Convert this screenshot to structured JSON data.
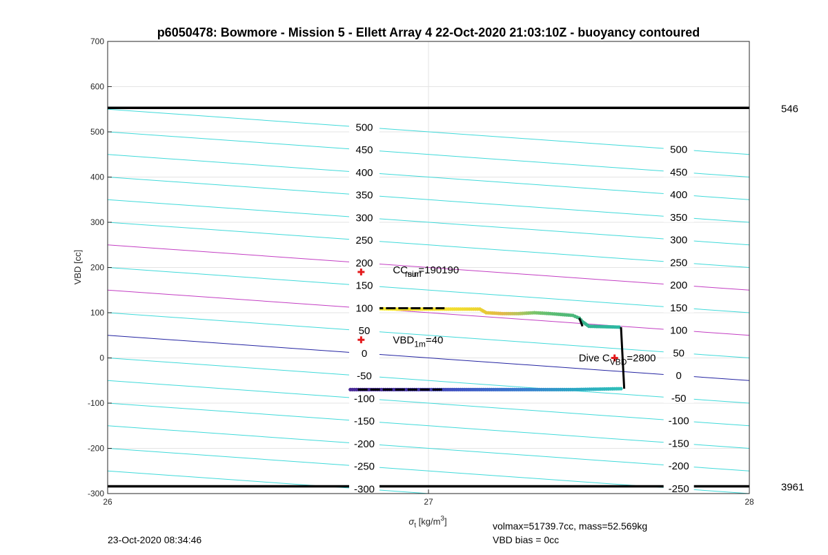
{
  "chart_data": {
    "type": "line",
    "title": "p6050478: Bowmore - Mission 5 - Ellett Array 4 22-Oct-2020 21:03:10Z - buoyancy contoured",
    "xlabel": "σ",
    "xlabel_sub": "t",
    "xlabel_unit": " [kg/m",
    "xlabel_unit_sup": "3",
    "xlabel_unit_end": "]",
    "ylabel": "VBD [cc]",
    "xlim": [
      26,
      28
    ],
    "ylim": [
      -300,
      700
    ],
    "xticks": [
      26,
      27,
      28
    ],
    "yticks": [
      -300,
      -200,
      -100,
      0,
      100,
      200,
      300,
      400,
      500,
      600,
      700
    ],
    "grid": true,
    "colors": {
      "contour": "#3dd9d9",
      "contour_highlight": "#c23bc2",
      "zero_contour": "#2020a0",
      "limit_line": "#000000",
      "marker": "#e41a1c",
      "trace_black": "#000000"
    },
    "buoyancy_contour": {
      "slope_per_sigma": -50,
      "intercept_at_26_for_zero": 50,
      "levels": [
        -300,
        -250,
        -200,
        -150,
        -100,
        -50,
        0,
        50,
        100,
        150,
        200,
        250,
        300,
        350,
        400,
        450,
        500
      ],
      "highlight_levels": [
        100,
        200
      ],
      "zero_level": 0
    },
    "contour_labels_left": {
      "sigma": 26.8,
      "levels": [
        "500",
        "450",
        "400",
        "350",
        "300",
        "250",
        "200",
        "150",
        "100",
        "50",
        "0",
        "-50",
        "-100",
        "-150",
        "-200",
        "-250",
        "-300"
      ]
    },
    "contour_labels_right": {
      "sigma": 27.78,
      "levels": [
        "500",
        "450",
        "400",
        "350",
        "300",
        "250",
        "200",
        "150",
        "100",
        "50",
        "0",
        "-50",
        "-100",
        "-150",
        "-200",
        "-250"
      ]
    },
    "limit_lines": [
      {
        "vbd": 553,
        "label": "546"
      },
      {
        "vbd": -284,
        "label": "3961"
      }
    ],
    "markers": [
      {
        "sigma": 26.79,
        "vbd": 190,
        "label_main": "CC",
        "label_sub1": "surf",
        "label_sub2": "min",
        "label_value": "=190190"
      },
      {
        "sigma": 26.79,
        "vbd": 40,
        "label_main": "VBD",
        "label_sub": "1m",
        "label_value": "=40"
      },
      {
        "sigma": 27.58,
        "vbd": 0,
        "label_main": "Dive C",
        "label_sub": "VBD",
        "label_value": "=2800"
      }
    ],
    "trace_upper": [
      {
        "sigma": 26.78,
        "vbd": 110,
        "color": "#f2e82a"
      },
      {
        "sigma": 26.9,
        "vbd": 108,
        "color": "#f4e62c"
      },
      {
        "sigma": 27.0,
        "vbd": 108,
        "color": "#f6e22e"
      },
      {
        "sigma": 27.1,
        "vbd": 108,
        "color": "#f1dc30"
      },
      {
        "sigma": 27.16,
        "vbd": 108,
        "color": "#ecd432"
      },
      {
        "sigma": 27.18,
        "vbd": 100,
        "color": "#e6c838"
      },
      {
        "sigma": 27.23,
        "vbd": 98,
        "color": "#e4b84a"
      },
      {
        "sigma": 27.28,
        "vbd": 98,
        "color": "#b9c45a"
      },
      {
        "sigma": 27.33,
        "vbd": 100,
        "color": "#7cc46a"
      },
      {
        "sigma": 27.38,
        "vbd": 98,
        "color": "#5fbe73"
      },
      {
        "sigma": 27.45,
        "vbd": 94,
        "color": "#4db87a"
      },
      {
        "sigma": 27.47,
        "vbd": 88,
        "color": "#3fb582"
      },
      {
        "sigma": 27.48,
        "vbd": 80,
        "color": "#38b28a"
      },
      {
        "sigma": 27.5,
        "vbd": 70,
        "color": "#32b492"
      },
      {
        "sigma": 27.6,
        "vbd": 68,
        "color": "#2cb9a4"
      }
    ],
    "trace_lower": [
      {
        "sigma": 27.6,
        "vbd": -68,
        "color": "#30c0b8"
      },
      {
        "sigma": 27.45,
        "vbd": -70,
        "color": "#2ba6c4"
      },
      {
        "sigma": 27.3,
        "vbd": -70,
        "color": "#3a7fd0"
      },
      {
        "sigma": 27.1,
        "vbd": -70,
        "color": "#3e56c4"
      },
      {
        "sigma": 26.95,
        "vbd": -70,
        "color": "#4534a8"
      },
      {
        "sigma": 26.75,
        "vbd": -70,
        "color": "#4a2a96"
      }
    ],
    "trace_black_segments": [
      [
        {
          "sigma": 26.79,
          "vbd": 110
        },
        {
          "sigma": 27.05,
          "vbd": 110
        }
      ],
      [
        {
          "sigma": 27.6,
          "vbd": 68
        },
        {
          "sigma": 27.61,
          "vbd": -68
        }
      ],
      [
        {
          "sigma": 26.78,
          "vbd": -70
        },
        {
          "sigma": 27.05,
          "vbd": -70
        }
      ],
      [
        {
          "sigma": 27.47,
          "vbd": 88
        },
        {
          "sigma": 27.48,
          "vbd": 70
        }
      ]
    ]
  },
  "footer": {
    "timestamp": "23-Oct-2020 08:34:46",
    "volmax": "volmax=51739.7cc, mass=52.569kg",
    "vbd_bias": "VBD bias = 0cc"
  }
}
